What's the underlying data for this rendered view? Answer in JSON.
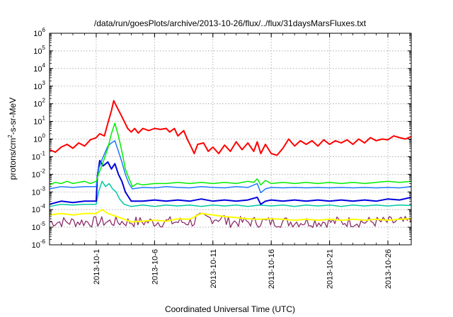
{
  "chart_data": {
    "type": "line",
    "title": "/data/run/goesPlots/archive/2013-10-26/flux/../flux/31daysMarsFluxes.txt",
    "xlabel": "Coordinated Universal Time (UTC)",
    "ylabel": {
      "base": "protons/cm",
      "sup": "2",
      "rest": "-s-sr-MeV"
    },
    "yscale": "log",
    "ylim_exponent": [
      -6,
      6
    ],
    "xlim_days": [
      0,
      31
    ],
    "x_ticks": [
      {
        "day": 4,
        "label": "2013-10-1"
      },
      {
        "day": 9,
        "label": "2013-10-6"
      },
      {
        "day": 14,
        "label": "2013-10-11"
      },
      {
        "day": 19,
        "label": "2013-10-16"
      },
      {
        "day": 24,
        "label": "2013-10-21"
      },
      {
        "day": 29,
        "label": "2013-10-26"
      }
    ],
    "y_ticks": [
      {
        "exp": -6,
        "base": "10",
        "sup": "-6"
      },
      {
        "exp": -5,
        "base": "10",
        "sup": "-5"
      },
      {
        "exp": -4,
        "base": "10",
        "sup": "-4"
      },
      {
        "exp": -3,
        "base": "10",
        "sup": "-3"
      },
      {
        "exp": -2,
        "base": "10",
        "sup": "-2"
      },
      {
        "exp": -1,
        "base": "10",
        "sup": "-1"
      },
      {
        "exp": 0,
        "base": "10",
        "sup": "0"
      },
      {
        "exp": 1,
        "base": "10",
        "sup": "1"
      },
      {
        "exp": 2,
        "base": "10",
        "sup": "2"
      },
      {
        "exp": 3,
        "base": "10",
        "sup": "3"
      },
      {
        "exp": 4,
        "base": "10",
        "sup": "4"
      },
      {
        "exp": 5,
        "base": "10",
        "sup": "5"
      },
      {
        "exp": 6,
        "base": "10",
        "sup": "6"
      }
    ],
    "grid": true,
    "series": [
      {
        "color": "#ff0000",
        "width": 2,
        "points": [
          [
            0,
            0.25
          ],
          [
            0.5,
            0.18
          ],
          [
            1,
            0.35
          ],
          [
            1.5,
            0.5
          ],
          [
            2,
            0.3
          ],
          [
            2.5,
            0.6
          ],
          [
            3,
            0.4
          ],
          [
            3.5,
            0.9
          ],
          [
            4,
            1.2
          ],
          [
            4.3,
            2.0
          ],
          [
            4.7,
            1.5
          ],
          [
            5,
            8
          ],
          [
            5.3,
            40
          ],
          [
            5.5,
            150
          ],
          [
            5.8,
            60
          ],
          [
            6.1,
            25
          ],
          [
            6.4,
            10
          ],
          [
            6.7,
            4
          ],
          [
            7,
            2.5
          ],
          [
            7.3,
            4
          ],
          [
            7.6,
            2.2
          ],
          [
            8,
            4
          ],
          [
            8.5,
            3
          ],
          [
            9,
            4
          ],
          [
            9.5,
            3.5
          ],
          [
            10,
            4
          ],
          [
            10.3,
            2.5
          ],
          [
            10.7,
            4
          ],
          [
            11,
            1.5
          ],
          [
            11.5,
            3
          ],
          [
            11.8,
            1.0
          ],
          [
            12.1,
            0.4
          ],
          [
            12.4,
            0.15
          ],
          [
            12.7,
            0.5
          ],
          [
            13.2,
            0.6
          ],
          [
            13.6,
            0.2
          ],
          [
            14,
            0.35
          ],
          [
            14.5,
            0.15
          ],
          [
            15,
            0.45
          ],
          [
            15.5,
            0.2
          ],
          [
            16,
            0.7
          ],
          [
            16.5,
            0.25
          ],
          [
            17,
            0.6
          ],
          [
            17.5,
            0.2
          ],
          [
            17.8,
            0.7
          ],
          [
            18.1,
            0.15
          ],
          [
            18.5,
            0.5
          ],
          [
            19,
            0.15
          ],
          [
            19.5,
            0.12
          ],
          [
            20,
            0.3
          ],
          [
            20.5,
            1.0
          ],
          [
            21,
            0.4
          ],
          [
            21.5,
            0.8
          ],
          [
            22,
            0.5
          ],
          [
            22.5,
            0.8
          ],
          [
            23,
            0.4
          ],
          [
            23.5,
            0.9
          ],
          [
            24,
            0.5
          ],
          [
            24.5,
            0.8
          ],
          [
            25,
            0.6
          ],
          [
            25.5,
            0.9
          ],
          [
            26,
            0.5
          ],
          [
            26.5,
            1.0
          ],
          [
            27,
            0.6
          ],
          [
            27.5,
            1.2
          ],
          [
            28,
            0.8
          ],
          [
            28.5,
            1.0
          ],
          [
            29,
            0.9
          ],
          [
            29.5,
            1.5
          ],
          [
            30,
            1.2
          ],
          [
            30.5,
            1.0
          ],
          [
            31,
            1.4
          ]
        ]
      },
      {
        "color": "#00ee00",
        "width": 1.5,
        "points": [
          [
            0,
            0.0025
          ],
          [
            0.5,
            0.0035
          ],
          [
            1,
            0.003
          ],
          [
            1.5,
            0.004
          ],
          [
            2,
            0.003
          ],
          [
            2.5,
            0.0035
          ],
          [
            3,
            0.004
          ],
          [
            3.5,
            0.003
          ],
          [
            4,
            0.004
          ],
          [
            4.2,
            0.01
          ],
          [
            4.6,
            0.05
          ],
          [
            5,
            0.3
          ],
          [
            5.3,
            2
          ],
          [
            5.6,
            8
          ],
          [
            5.9,
            1.5
          ],
          [
            6.2,
            0.2
          ],
          [
            6.5,
            0.02
          ],
          [
            6.8,
            0.006
          ],
          [
            7.1,
            0.002
          ],
          [
            7.5,
            0.003
          ],
          [
            8,
            0.0025
          ],
          [
            9,
            0.003
          ],
          [
            10,
            0.003
          ],
          [
            11,
            0.0035
          ],
          [
            12,
            0.003
          ],
          [
            13,
            0.0035
          ],
          [
            14,
            0.003
          ],
          [
            15,
            0.0035
          ],
          [
            16,
            0.003
          ],
          [
            17,
            0.004
          ],
          [
            17.5,
            0.0035
          ],
          [
            17.8,
            0.0055
          ],
          [
            18.1,
            0.0025
          ],
          [
            18.5,
            0.0045
          ],
          [
            19,
            0.003
          ],
          [
            20,
            0.0035
          ],
          [
            21,
            0.003
          ],
          [
            22,
            0.0035
          ],
          [
            23,
            0.003
          ],
          [
            24,
            0.0035
          ],
          [
            25,
            0.003
          ],
          [
            26,
            0.0035
          ],
          [
            27,
            0.003
          ],
          [
            28,
            0.0035
          ],
          [
            29,
            0.004
          ],
          [
            30,
            0.0035
          ],
          [
            31,
            0.004
          ]
        ]
      },
      {
        "color": "#1e78ff",
        "width": 1.5,
        "points": [
          [
            0,
            0.0015
          ],
          [
            1,
            0.002
          ],
          [
            2,
            0.0018
          ],
          [
            3,
            0.002
          ],
          [
            4,
            0.002
          ],
          [
            4.2,
            0.02
          ],
          [
            4.6,
            0.1
          ],
          [
            5,
            0.4
          ],
          [
            5.3,
            0.6
          ],
          [
            5.6,
            0.8
          ],
          [
            5.9,
            0.2
          ],
          [
            6.2,
            0.05
          ],
          [
            6.5,
            0.01
          ],
          [
            6.8,
            0.003
          ],
          [
            7.1,
            0.0015
          ],
          [
            8,
            0.0018
          ],
          [
            9,
            0.0017
          ],
          [
            10,
            0.002
          ],
          [
            11,
            0.0018
          ],
          [
            12,
            0.0017
          ],
          [
            13,
            0.002
          ],
          [
            14,
            0.0018
          ],
          [
            15,
            0.0017
          ],
          [
            16,
            0.002
          ],
          [
            17,
            0.0018
          ],
          [
            17.8,
            0.003
          ],
          [
            18.1,
            0.0009
          ],
          [
            18.5,
            0.0015
          ],
          [
            19,
            0.0018
          ],
          [
            20,
            0.0017
          ],
          [
            21,
            0.0018
          ],
          [
            22,
            0.0017
          ],
          [
            23,
            0.0018
          ],
          [
            24,
            0.0017
          ],
          [
            25,
            0.0018
          ],
          [
            26,
            0.0017
          ],
          [
            27,
            0.0018
          ],
          [
            28,
            0.0017
          ],
          [
            29,
            0.0018
          ],
          [
            30,
            0.0017
          ],
          [
            31,
            0.002
          ]
        ]
      },
      {
        "color": "#0000dd",
        "width": 2,
        "points": [
          [
            0,
            0.0002
          ],
          [
            1,
            0.0003
          ],
          [
            2,
            0.00025
          ],
          [
            3,
            0.0003
          ],
          [
            4,
            0.0003
          ],
          [
            4.1,
            0.008
          ],
          [
            4.3,
            0.06
          ],
          [
            4.6,
            0.03
          ],
          [
            5,
            0.05
          ],
          [
            5.3,
            0.02
          ],
          [
            5.6,
            0.04
          ],
          [
            5.9,
            0.01
          ],
          [
            6.2,
            0.004
          ],
          [
            6.5,
            0.001
          ],
          [
            7,
            0.0003
          ],
          [
            8,
            0.0003
          ],
          [
            9,
            0.00035
          ],
          [
            10,
            0.0003
          ],
          [
            11,
            0.00035
          ],
          [
            12,
            0.0003
          ],
          [
            13,
            0.0004
          ],
          [
            14,
            0.0003
          ],
          [
            15,
            0.00035
          ],
          [
            16,
            0.0003
          ],
          [
            17,
            0.00035
          ],
          [
            17.8,
            0.0005
          ],
          [
            18.1,
            0.0002
          ],
          [
            18.5,
            0.0003
          ],
          [
            19,
            0.00035
          ],
          [
            20,
            0.0003
          ],
          [
            21,
            0.00035
          ],
          [
            22,
            0.0003
          ],
          [
            23,
            0.00035
          ],
          [
            24,
            0.0003
          ],
          [
            25,
            0.00035
          ],
          [
            26,
            0.0003
          ],
          [
            27,
            0.00035
          ],
          [
            28,
            0.0003
          ],
          [
            29,
            0.0004
          ],
          [
            30,
            0.00035
          ],
          [
            31,
            0.0005
          ]
        ]
      },
      {
        "color": "#00c8a0",
        "width": 1.5,
        "points": [
          [
            0,
            0.00015
          ],
          [
            1,
            0.0002
          ],
          [
            2,
            0.00018
          ],
          [
            3,
            0.0002
          ],
          [
            4,
            0.0002
          ],
          [
            4.2,
            0.001
          ],
          [
            4.5,
            0.004
          ],
          [
            4.8,
            0.002
          ],
          [
            5.1,
            0.003
          ],
          [
            5.4,
            0.0015
          ],
          [
            5.7,
            0.001
          ],
          [
            6,
            0.0004
          ],
          [
            6.4,
            0.0002
          ],
          [
            7,
            0.00015
          ],
          [
            8,
            0.00018
          ],
          [
            9,
            0.00015
          ],
          [
            10,
            0.00018
          ],
          [
            11,
            0.00016
          ],
          [
            12,
            0.00018
          ],
          [
            13,
            0.00015
          ],
          [
            14,
            0.00018
          ],
          [
            15,
            0.00016
          ],
          [
            16,
            0.00018
          ],
          [
            17,
            0.00015
          ],
          [
            18,
            0.00018
          ],
          [
            19,
            0.00016
          ],
          [
            20,
            0.00018
          ],
          [
            21,
            0.00015
          ],
          [
            22,
            0.00018
          ],
          [
            23,
            0.00016
          ],
          [
            24,
            0.00018
          ],
          [
            25,
            0.00015
          ],
          [
            26,
            0.00018
          ],
          [
            27,
            0.00016
          ],
          [
            28,
            0.00018
          ],
          [
            29,
            0.00016
          ],
          [
            30,
            0.00018
          ],
          [
            31,
            0.00017
          ]
        ]
      },
      {
        "color": "#ffff00",
        "width": 2,
        "points": [
          [
            0,
            5e-05
          ],
          [
            1,
            6e-05
          ],
          [
            2,
            5e-05
          ],
          [
            3,
            6e-05
          ],
          [
            4,
            6e-05
          ],
          [
            4.5,
            0.0001
          ],
          [
            5,
            6e-05
          ],
          [
            6,
            3.5e-05
          ],
          [
            7,
            2e-05
          ],
          [
            8,
            2.2e-05
          ],
          [
            9,
            2.5e-05
          ],
          [
            10,
            2.2e-05
          ],
          [
            11,
            3e-05
          ],
          [
            12,
            2.8e-05
          ],
          [
            13,
            6e-05
          ],
          [
            14,
            5e-05
          ],
          [
            15,
            4e-05
          ],
          [
            16,
            3.5e-05
          ],
          [
            17,
            3e-05
          ],
          [
            18,
            2.8e-05
          ],
          [
            19,
            3e-05
          ],
          [
            20,
            2.8e-05
          ],
          [
            21,
            2.5e-05
          ],
          [
            22,
            2.8e-05
          ],
          [
            23,
            2.5e-05
          ],
          [
            24,
            2.8e-05
          ],
          [
            25,
            2.5e-05
          ],
          [
            26,
            2.8e-05
          ],
          [
            27,
            2.5e-05
          ],
          [
            28,
            2.8e-05
          ],
          [
            29,
            2.5e-05
          ],
          [
            30,
            2.8e-05
          ],
          [
            31,
            3e-05
          ]
        ]
      }
    ],
    "noise_series": {
      "color": "#8b2e6b",
      "width": 1.3,
      "center": 2e-05,
      "spread_decades": 0.32,
      "steps": 180
    }
  }
}
